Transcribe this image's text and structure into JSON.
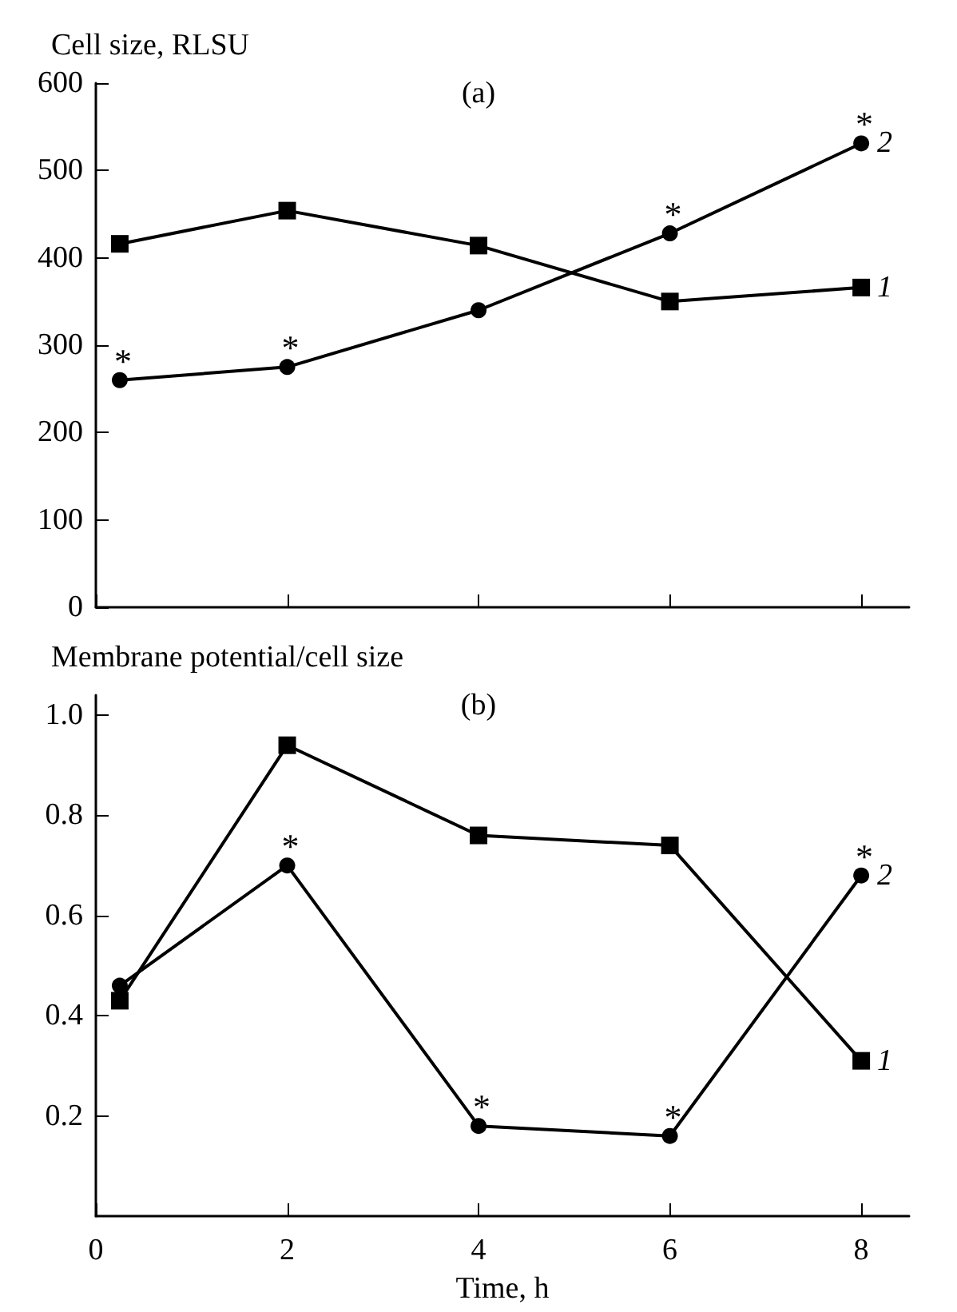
{
  "chart_data": [
    {
      "type": "line",
      "title": "(a)",
      "ylabel": "Cell size, RLSU",
      "x": [
        0.25,
        2,
        4,
        6,
        8
      ],
      "xlim": [
        0,
        8.5
      ],
      "xticks": [
        {
          "value": 0,
          "label": null
        },
        {
          "value": 2,
          "label": null
        },
        {
          "value": 4,
          "label": null
        },
        {
          "value": 6,
          "label": null
        },
        {
          "value": 8,
          "label": null
        }
      ],
      "ylim": [
        0,
        600
      ],
      "yticks": [
        0,
        100,
        200,
        300,
        400,
        500,
        600
      ],
      "tick_labels": "y",
      "grid": false,
      "legend": false,
      "series": [
        {
          "name": "1",
          "color": "#000000",
          "marker": "square",
          "values": [
            416,
            454,
            414,
            350,
            366
          ]
        },
        {
          "name": "2",
          "color": "#000000",
          "marker": "circle",
          "values": [
            260,
            275,
            340,
            428,
            531
          ]
        }
      ],
      "annotations": [
        {
          "text": "*",
          "x": 0.25,
          "y": 260
        },
        {
          "text": "*",
          "x": 2,
          "y": 275
        },
        {
          "text": "*",
          "x": 6,
          "y": 428
        },
        {
          "text": "*",
          "x": 8,
          "y": 531
        }
      ]
    },
    {
      "type": "line",
      "title": "(b)",
      "ylabel": "Membrane potential/cell size",
      "xlabel": "Time, h",
      "x": [
        0.25,
        2,
        4,
        6,
        8
      ],
      "xlim": [
        0,
        8.5
      ],
      "xticks": [
        0,
        2,
        4,
        6,
        8
      ],
      "ylim": [
        0,
        1.04
      ],
      "yticks": [
        0.2,
        0.4,
        0.6,
        0.8,
        {
          "value": 1,
          "label": "1.0"
        }
      ],
      "grid": false,
      "legend": false,
      "series": [
        {
          "name": "1",
          "color": "#000000",
          "marker": "square",
          "values": [
            0.43,
            0.94,
            0.76,
            0.74,
            0.31
          ]
        },
        {
          "name": "2",
          "color": "#000000",
          "marker": "circle",
          "values": [
            0.46,
            0.7,
            0.18,
            0.16,
            0.68
          ]
        }
      ],
      "annotations": [
        {
          "text": "*",
          "x": 2,
          "y": 0.7
        },
        {
          "text": "*",
          "x": 4,
          "y": 0.18
        },
        {
          "text": "*",
          "x": 6,
          "y": 0.16
        },
        {
          "text": "*",
          "x": 8,
          "y": 0.68
        }
      ]
    }
  ]
}
